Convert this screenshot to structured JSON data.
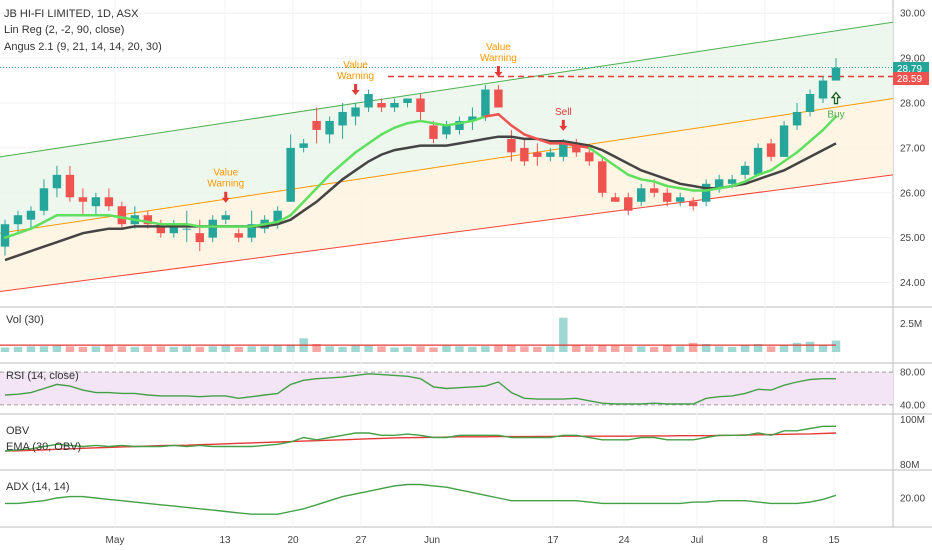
{
  "header": {
    "title": "JB HI-FI LIMITED, 1D, ASX",
    "linreg_label": "Lin Reg (2, -2, 90, close)",
    "angus_label": "Angus 2.1 (9, 21, 14, 14, 20, 30)"
  },
  "price_labels": {
    "last": "28.79",
    "level": "28.59"
  },
  "colors": {
    "up": "#26a69a",
    "down": "#ef5350",
    "fast": "#4caf50",
    "slow": "#444444",
    "sell": "#e53935",
    "warn": "#ff9800",
    "buy_arrow": "#1b5e20"
  },
  "chart_data": [
    {
      "type": "candlestick",
      "x_ticks": [
        "May",
        "13",
        "20",
        "27",
        "Jun",
        "17",
        "24",
        "Jul",
        "8",
        "15"
      ],
      "y_ticks": [
        "24.00",
        "25.00",
        "26.00",
        "27.00",
        "28.00",
        "29.00",
        "30.00"
      ],
      "ylim": [
        23.5,
        30.25
      ],
      "candles": [
        {
          "o": 24.8,
          "h": 25.4,
          "l": 24.6,
          "c": 25.3
        },
        {
          "o": 25.3,
          "h": 25.6,
          "l": 25.1,
          "c": 25.5
        },
        {
          "o": 25.4,
          "h": 25.7,
          "l": 25.2,
          "c": 25.6
        },
        {
          "o": 25.6,
          "h": 26.3,
          "l": 25.5,
          "c": 26.1
        },
        {
          "o": 26.1,
          "h": 26.6,
          "l": 25.9,
          "c": 26.4
        },
        {
          "o": 26.4,
          "h": 26.6,
          "l": 25.8,
          "c": 25.9
        },
        {
          "o": 25.9,
          "h": 26.1,
          "l": 25.5,
          "c": 25.8
        },
        {
          "o": 25.7,
          "h": 26.0,
          "l": 25.5,
          "c": 25.9
        },
        {
          "o": 25.9,
          "h": 26.1,
          "l": 25.6,
          "c": 25.7
        },
        {
          "o": 25.7,
          "h": 25.8,
          "l": 25.2,
          "c": 25.3
        },
        {
          "o": 25.3,
          "h": 25.7,
          "l": 25.2,
          "c": 25.5
        },
        {
          "o": 25.5,
          "h": 25.6,
          "l": 25.2,
          "c": 25.3
        },
        {
          "o": 25.3,
          "h": 25.4,
          "l": 25.0,
          "c": 25.1
        },
        {
          "o": 25.1,
          "h": 25.4,
          "l": 25.0,
          "c": 25.3
        },
        {
          "o": 25.2,
          "h": 25.6,
          "l": 24.9,
          "c": 25.2
        },
        {
          "o": 25.1,
          "h": 25.4,
          "l": 24.7,
          "c": 24.9
        },
        {
          "o": 25.0,
          "h": 25.5,
          "l": 24.9,
          "c": 25.4
        },
        {
          "o": 25.4,
          "h": 25.6,
          "l": 25.3,
          "c": 25.5
        },
        {
          "o": 25.1,
          "h": 25.2,
          "l": 24.9,
          "c": 25.0
        },
        {
          "o": 25.0,
          "h": 25.6,
          "l": 24.9,
          "c": 25.3
        },
        {
          "o": 25.2,
          "h": 25.5,
          "l": 25.1,
          "c": 25.4
        },
        {
          "o": 25.3,
          "h": 25.7,
          "l": 25.2,
          "c": 25.6
        },
        {
          "o": 25.8,
          "h": 27.3,
          "l": 25.8,
          "c": 27.0
        },
        {
          "o": 27.0,
          "h": 27.2,
          "l": 26.9,
          "c": 27.1
        },
        {
          "o": 27.6,
          "h": 27.9,
          "l": 27.1,
          "c": 27.4
        },
        {
          "o": 27.3,
          "h": 27.7,
          "l": 27.1,
          "c": 27.6
        },
        {
          "o": 27.5,
          "h": 28.0,
          "l": 27.2,
          "c": 27.8
        },
        {
          "o": 27.7,
          "h": 28.0,
          "l": 27.5,
          "c": 27.9
        },
        {
          "o": 27.9,
          "h": 28.3,
          "l": 27.8,
          "c": 28.2
        },
        {
          "o": 28.0,
          "h": 28.1,
          "l": 27.8,
          "c": 27.9
        },
        {
          "o": 27.9,
          "h": 28.1,
          "l": 27.8,
          "c": 28.0
        },
        {
          "o": 28.0,
          "h": 28.1,
          "l": 27.9,
          "c": 28.1
        },
        {
          "o": 28.1,
          "h": 28.2,
          "l": 27.6,
          "c": 27.8
        },
        {
          "o": 27.5,
          "h": 27.6,
          "l": 27.1,
          "c": 27.2
        },
        {
          "o": 27.3,
          "h": 27.6,
          "l": 27.2,
          "c": 27.5
        },
        {
          "o": 27.4,
          "h": 27.7,
          "l": 27.3,
          "c": 27.6
        },
        {
          "o": 27.6,
          "h": 27.9,
          "l": 27.4,
          "c": 27.7
        },
        {
          "o": 27.7,
          "h": 28.4,
          "l": 27.6,
          "c": 28.3
        },
        {
          "o": 28.3,
          "h": 28.4,
          "l": 27.9,
          "c": 27.9
        },
        {
          "o": 27.2,
          "h": 27.4,
          "l": 26.7,
          "c": 26.9
        },
        {
          "o": 27.0,
          "h": 27.2,
          "l": 26.6,
          "c": 26.7
        },
        {
          "o": 26.9,
          "h": 27.1,
          "l": 26.6,
          "c": 26.8
        },
        {
          "o": 26.8,
          "h": 27.0,
          "l": 26.7,
          "c": 26.9
        },
        {
          "o": 26.8,
          "h": 27.2,
          "l": 26.7,
          "c": 27.1
        },
        {
          "o": 27.1,
          "h": 27.2,
          "l": 26.8,
          "c": 26.9
        },
        {
          "o": 26.9,
          "h": 27.0,
          "l": 26.6,
          "c": 26.7
        },
        {
          "o": 26.7,
          "h": 26.8,
          "l": 25.9,
          "c": 26.0
        },
        {
          "o": 25.9,
          "h": 26.0,
          "l": 25.8,
          "c": 25.8
        },
        {
          "o": 25.9,
          "h": 26.0,
          "l": 25.5,
          "c": 25.6
        },
        {
          "o": 25.8,
          "h": 26.2,
          "l": 25.7,
          "c": 26.1
        },
        {
          "o": 26.1,
          "h": 26.3,
          "l": 25.9,
          "c": 26.0
        },
        {
          "o": 26.0,
          "h": 26.1,
          "l": 25.7,
          "c": 25.8
        },
        {
          "o": 25.8,
          "h": 26.0,
          "l": 25.7,
          "c": 25.9
        },
        {
          "o": 25.8,
          "h": 25.9,
          "l": 25.6,
          "c": 25.7
        },
        {
          "o": 25.8,
          "h": 26.3,
          "l": 25.7,
          "c": 26.2
        },
        {
          "o": 26.1,
          "h": 26.4,
          "l": 26.0,
          "c": 26.3
        },
        {
          "o": 26.2,
          "h": 26.4,
          "l": 26.1,
          "c": 26.3
        },
        {
          "o": 26.4,
          "h": 26.7,
          "l": 26.3,
          "c": 26.6
        },
        {
          "o": 26.4,
          "h": 27.1,
          "l": 26.4,
          "c": 27.0
        },
        {
          "o": 27.1,
          "h": 27.2,
          "l": 26.7,
          "c": 26.8
        },
        {
          "o": 26.8,
          "h": 27.6,
          "l": 26.8,
          "c": 27.5
        },
        {
          "o": 27.5,
          "h": 28.0,
          "l": 27.4,
          "c": 27.8
        },
        {
          "o": 27.8,
          "h": 28.3,
          "l": 27.7,
          "c": 28.2
        },
        {
          "o": 28.1,
          "h": 28.6,
          "l": 28.0,
          "c": 28.5
        },
        {
          "o": 28.5,
          "h": 29.0,
          "l": 28.5,
          "c": 28.79
        }
      ],
      "fast_ema": [
        25.0,
        25.1,
        25.2,
        25.35,
        25.5,
        25.5,
        25.5,
        25.5,
        25.5,
        25.45,
        25.4,
        25.35,
        25.3,
        25.3,
        25.3,
        25.25,
        25.25,
        25.25,
        25.25,
        25.25,
        25.3,
        25.35,
        25.5,
        25.8,
        26.1,
        26.4,
        26.65,
        26.9,
        27.1,
        27.3,
        27.45,
        27.55,
        27.6,
        27.55,
        27.5,
        27.55,
        27.6,
        27.7,
        27.75,
        27.5,
        27.3,
        27.2,
        27.1,
        27.1,
        27.05,
        27.0,
        26.8,
        26.6,
        26.4,
        26.3,
        26.25,
        26.15,
        26.1,
        26.05,
        26.05,
        26.1,
        26.15,
        26.25,
        26.4,
        26.5,
        26.7,
        26.9,
        27.15,
        27.4,
        27.7
      ],
      "slow_ema": [
        24.5,
        24.6,
        24.7,
        24.8,
        24.9,
        25.0,
        25.1,
        25.15,
        25.2,
        25.2,
        25.25,
        25.25,
        25.25,
        25.25,
        25.25,
        25.25,
        25.25,
        25.25,
        25.25,
        25.25,
        25.25,
        25.3,
        25.4,
        25.6,
        25.8,
        26.05,
        26.3,
        26.5,
        26.7,
        26.85,
        26.95,
        27.0,
        27.05,
        27.05,
        27.05,
        27.1,
        27.15,
        27.2,
        27.25,
        27.25,
        27.2,
        27.2,
        27.15,
        27.15,
        27.1,
        27.05,
        26.95,
        26.8,
        26.65,
        26.5,
        26.4,
        26.3,
        26.2,
        26.15,
        26.1,
        26.1,
        26.15,
        26.2,
        26.3,
        26.4,
        26.5,
        26.65,
        26.8,
        26.95,
        27.1
      ],
      "linreg": {
        "upper": [
          26.8,
          29.8
        ],
        "middle": [
          25.1,
          28.1
        ],
        "lower": [
          23.8,
          26.4
        ],
        "color_upper": "#4caf50",
        "color_middle": "#ff9800",
        "color_lower": "#f44336"
      },
      "resistance": 28.59
    },
    {
      "type": "bar",
      "title": "Vol (30)",
      "y_ticks": [
        "2.5M"
      ],
      "ylim": [
        0,
        3.5
      ],
      "values": [
        0.4,
        0.45,
        0.5,
        0.5,
        0.55,
        0.5,
        0.45,
        0.5,
        0.55,
        0.5,
        0.45,
        0.5,
        0.5,
        0.45,
        0.5,
        0.45,
        0.5,
        0.55,
        0.45,
        0.5,
        0.5,
        0.55,
        0.6,
        1.2,
        0.7,
        0.5,
        0.45,
        0.6,
        0.55,
        0.5,
        0.4,
        0.45,
        0.5,
        0.4,
        0.55,
        0.5,
        0.45,
        0.5,
        0.55,
        0.6,
        0.5,
        0.45,
        0.5,
        3.0,
        0.6,
        0.5,
        0.6,
        0.55,
        0.5,
        0.5,
        0.45,
        0.6,
        0.5,
        0.8,
        0.7,
        0.5,
        0.45,
        0.6,
        0.7,
        0.5,
        0.6,
        0.8,
        0.9,
        0.6,
        1.0
      ],
      "ma": 0.6
    },
    {
      "type": "line",
      "title": "RSI (14, close)",
      "y_ticks": [
        "80.00",
        "40.00"
      ],
      "ylim": [
        30,
        90
      ],
      "band": [
        40,
        80
      ],
      "values": [
        52,
        53,
        55,
        60,
        65,
        63,
        58,
        55,
        55,
        54,
        54,
        52,
        51,
        51,
        51,
        50,
        51,
        51,
        48,
        50,
        52,
        54,
        65,
        70,
        72,
        73,
        74,
        76,
        78,
        77,
        76,
        75,
        72,
        62,
        60,
        61,
        62,
        63,
        68,
        55,
        48,
        47,
        47,
        47,
        48,
        45,
        42,
        41,
        41,
        41,
        42,
        41,
        41,
        41,
        48,
        50,
        51,
        54,
        59,
        58,
        64,
        68,
        71,
        72,
        72
      ]
    },
    {
      "type": "line",
      "title": "OBV",
      "y_ticks": [
        "100M",
        "80M"
      ],
      "ylim": [
        78,
        102
      ],
      "series": [
        {
          "values": [
            86,
            86.5,
            87,
            88,
            89,
            88.5,
            88,
            88.5,
            88,
            88.5,
            88,
            88,
            88,
            88.5,
            88,
            88.5,
            88,
            88,
            88,
            88,
            88.5,
            89,
            90,
            92,
            91,
            92,
            93,
            94,
            94,
            93,
            93,
            93.5,
            93,
            92,
            92,
            93,
            93,
            93,
            93,
            92,
            92,
            92,
            92,
            93,
            93,
            92,
            91,
            91,
            91,
            92,
            92,
            91,
            91,
            91,
            92,
            93,
            93,
            93,
            94,
            93,
            95,
            95,
            96,
            97,
            97
          ]
        },
        {
          "values": [
            86,
            86.1,
            86.3,
            86.5,
            86.8,
            87,
            87.2,
            87.4,
            87.6,
            87.8,
            88,
            88.2,
            88.4,
            88.5,
            88.6,
            88.8,
            89,
            89.2,
            89.4,
            89.6,
            89.8,
            90,
            90.2,
            90.4,
            90.6,
            90.8,
            91,
            91.2,
            91.4,
            91.6,
            91.8,
            91.9,
            92,
            92.1,
            92.2,
            92.3,
            92.3,
            92.3,
            92.4,
            92.4,
            92.4,
            92.5,
            92.5,
            92.6,
            92.6,
            92.6,
            92.6,
            92.6,
            92.6,
            92.7,
            92.7,
            92.7,
            92.8,
            92.8,
            92.8,
            92.9,
            93,
            93.1,
            93.2,
            93.3,
            93.4,
            93.5,
            93.6,
            93.8,
            94
          ]
        }
      ]
    },
    {
      "type": "line",
      "title": "ADX (14, 14)",
      "y_ticks": [
        "20.00"
      ],
      "ylim": [
        10,
        30
      ],
      "values": [
        18,
        18,
        18.5,
        19,
        20,
        20.5,
        20.5,
        20,
        19.5,
        19,
        18.5,
        18,
        17.5,
        17,
        16.5,
        16,
        15.5,
        15,
        14.5,
        14,
        14,
        14,
        15,
        16,
        17.5,
        19,
        20.5,
        21.5,
        22.5,
        23.5,
        24.5,
        25,
        25,
        24.5,
        24,
        23,
        22,
        21,
        20,
        19,
        19,
        19,
        19,
        19,
        19,
        18.5,
        18,
        18,
        18,
        18,
        18,
        18,
        18,
        18.5,
        18.5,
        19,
        19,
        19,
        18.5,
        18,
        18,
        18,
        18.5,
        19.5,
        21
      ]
    }
  ],
  "x_axis": [
    "May",
    "13",
    "20",
    "27",
    "Jun",
    "17",
    "24",
    "Jul",
    "8",
    "15"
  ],
  "annotations": [
    {
      "text": "Value\nWarning",
      "type": "warn",
      "i": 17
    },
    {
      "text": "Value\nWarning",
      "type": "warn",
      "i": 27
    },
    {
      "text": "Value\nWarning",
      "type": "warn",
      "i": 38
    },
    {
      "text": "Sell",
      "type": "sell",
      "i": 43
    },
    {
      "text": "Buy",
      "type": "buy",
      "i": 64
    }
  ]
}
